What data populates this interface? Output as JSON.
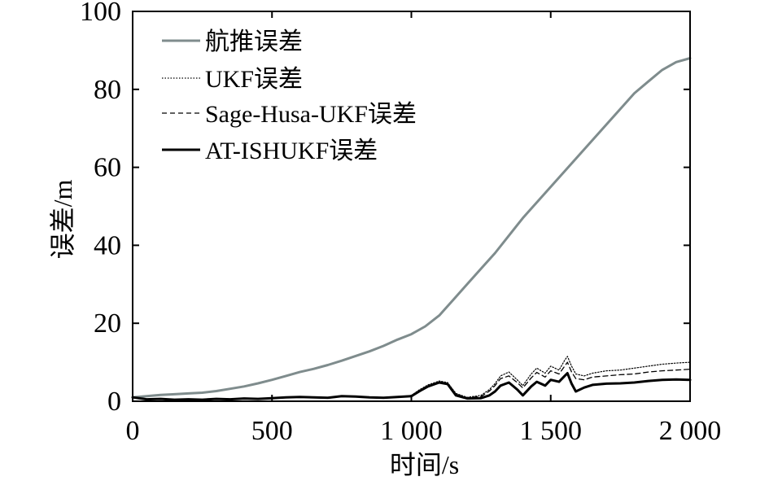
{
  "chart_data": {
    "type": "line",
    "xlabel": "时间/s",
    "ylabel": "误差/m",
    "xlim": [
      0,
      2000
    ],
    "ylim": [
      0,
      100
    ],
    "xticks": [
      0,
      500,
      1000,
      1500,
      2000
    ],
    "xtick_labels": [
      "0",
      "500",
      "1 000",
      "1 500",
      "2 000"
    ],
    "yticks": [
      0,
      20,
      40,
      60,
      80,
      100
    ],
    "ytick_labels": [
      "0",
      "20",
      "40",
      "60",
      "80",
      "100"
    ],
    "grid": false,
    "legend_position": "top-left",
    "series": [
      {
        "name": "航推误差",
        "color": "#7f8c8d",
        "style": "solid-thick",
        "x": [
          0,
          50,
          100,
          150,
          200,
          250,
          300,
          350,
          400,
          450,
          500,
          550,
          600,
          650,
          700,
          750,
          800,
          850,
          900,
          950,
          1000,
          1050,
          1100,
          1150,
          1200,
          1250,
          1300,
          1350,
          1400,
          1450,
          1500,
          1550,
          1600,
          1650,
          1700,
          1750,
          1800,
          1850,
          1900,
          1950,
          2000
        ],
        "y": [
          1,
          1.3,
          1.6,
          1.8,
          2.0,
          2.2,
          2.6,
          3.2,
          3.8,
          4.6,
          5.5,
          6.5,
          7.5,
          8.3,
          9.3,
          10.4,
          11.6,
          12.8,
          14.2,
          15.8,
          17.2,
          19.2,
          22,
          26,
          30,
          34,
          38,
          42.5,
          47,
          51,
          55,
          59,
          63,
          67,
          71,
          75,
          79,
          82,
          85,
          87,
          88
        ]
      },
      {
        "name": "UKF误差",
        "color": "#000000",
        "style": "dotted",
        "x": [
          0,
          50,
          100,
          150,
          200,
          250,
          300,
          350,
          400,
          450,
          500,
          550,
          600,
          650,
          700,
          750,
          800,
          850,
          900,
          950,
          1000,
          1030,
          1060,
          1100,
          1130,
          1160,
          1200,
          1250,
          1280,
          1300,
          1320,
          1350,
          1380,
          1400,
          1430,
          1450,
          1480,
          1500,
          1530,
          1550,
          1560,
          1575,
          1590,
          1620,
          1650,
          1700,
          1750,
          1800,
          1850,
          1900,
          1950,
          2000
        ],
        "y": [
          1,
          0.5,
          0.6,
          0.4,
          0.5,
          0.4,
          0.6,
          0.5,
          0.7,
          0.6,
          0.8,
          1.0,
          1.1,
          1.0,
          0.9,
          1.3,
          1.2,
          1.0,
          0.9,
          1.1,
          1.5,
          3.0,
          4.2,
          5.2,
          4.8,
          2.0,
          1.0,
          1.5,
          3.0,
          4.5,
          6.5,
          7.5,
          5.5,
          4.0,
          7.0,
          8.5,
          7.2,
          9.0,
          8.0,
          10.5,
          11.5,
          9.0,
          7.0,
          6.5,
          7.2,
          7.8,
          8.0,
          8.5,
          9.0,
          9.5,
          9.8,
          10.0
        ]
      },
      {
        "name": "Sage-Husa-UKF误差",
        "color": "#000000",
        "style": "dashed",
        "x": [
          0,
          50,
          100,
          150,
          200,
          250,
          300,
          350,
          400,
          450,
          500,
          550,
          600,
          650,
          700,
          750,
          800,
          850,
          900,
          950,
          1000,
          1030,
          1060,
          1100,
          1130,
          1160,
          1200,
          1250,
          1280,
          1300,
          1320,
          1350,
          1380,
          1400,
          1430,
          1450,
          1480,
          1500,
          1530,
          1550,
          1560,
          1575,
          1590,
          1620,
          1650,
          1700,
          1750,
          1800,
          1850,
          1900,
          1950,
          2000
        ],
        "y": [
          1,
          0.5,
          0.6,
          0.4,
          0.5,
          0.4,
          0.6,
          0.5,
          0.7,
          0.6,
          0.8,
          1.0,
          1.1,
          1.0,
          0.9,
          1.3,
          1.2,
          1.0,
          0.9,
          1.1,
          1.4,
          2.8,
          4.0,
          5.0,
          4.6,
          1.8,
          0.9,
          1.2,
          2.6,
          4.0,
          5.8,
          6.5,
          4.8,
          3.4,
          6.0,
          7.4,
          6.2,
          7.8,
          7.0,
          9.0,
          10.0,
          7.5,
          5.8,
          5.5,
          6.2,
          6.5,
          6.8,
          7.0,
          7.5,
          7.8,
          8.0,
          8.2
        ]
      },
      {
        "name": "AT-ISHUKF误差",
        "color": "#000000",
        "style": "solid",
        "x": [
          0,
          50,
          100,
          150,
          200,
          250,
          300,
          350,
          400,
          450,
          500,
          550,
          600,
          650,
          700,
          750,
          800,
          850,
          900,
          950,
          1000,
          1030,
          1060,
          1100,
          1130,
          1160,
          1200,
          1250,
          1280,
          1300,
          1320,
          1350,
          1380,
          1400,
          1430,
          1450,
          1480,
          1500,
          1530,
          1550,
          1560,
          1575,
          1590,
          1620,
          1650,
          1700,
          1750,
          1800,
          1850,
          1900,
          1950,
          2000
        ],
        "y": [
          1,
          0.5,
          0.6,
          0.4,
          0.5,
          0.4,
          0.6,
          0.5,
          0.7,
          0.6,
          0.8,
          1.0,
          1.1,
          1.0,
          0.9,
          1.3,
          1.2,
          1.0,
          0.9,
          1.1,
          1.3,
          2.6,
          3.8,
          4.8,
          4.4,
          1.5,
          0.7,
          0.8,
          1.5,
          2.5,
          4.0,
          4.8,
          3.0,
          1.5,
          3.8,
          5.0,
          4.0,
          5.5,
          5.0,
          6.5,
          7.2,
          4.5,
          2.5,
          3.5,
          4.2,
          4.5,
          4.6,
          4.8,
          5.2,
          5.5,
          5.6,
          5.5
        ]
      }
    ]
  }
}
